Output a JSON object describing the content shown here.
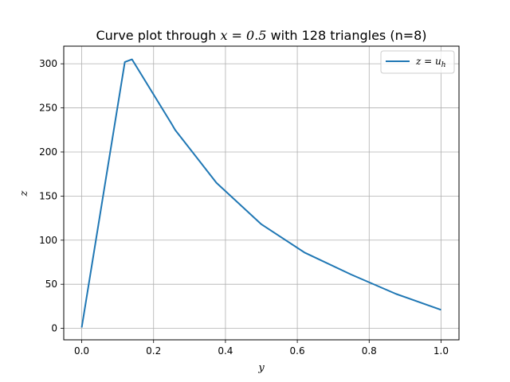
{
  "chart_data": {
    "type": "line",
    "title": {
      "prefix": "Curve plot through ",
      "math": "x = 0.5",
      "suffix": " with 128 triangles (n=8)"
    },
    "xlabel": "y",
    "ylabel": "z",
    "xlim": [
      -0.05,
      1.05
    ],
    "ylim": [
      -13,
      320
    ],
    "xticks": [
      0.0,
      0.2,
      0.4,
      0.6,
      0.8,
      1.0
    ],
    "xtick_labels": [
      "0.0",
      "0.2",
      "0.4",
      "0.6",
      "0.8",
      "1.0"
    ],
    "yticks": [
      0,
      50,
      100,
      150,
      200,
      250,
      300
    ],
    "ytick_labels": [
      "0",
      "50",
      "100",
      "150",
      "200",
      "250",
      "300"
    ],
    "grid": true,
    "legend_position": "top-right",
    "series": [
      {
        "name": "z = u_h",
        "legend_label": "z = u",
        "legend_sub": "h",
        "color": "#1f77b4",
        "x": [
          0.0,
          0.12,
          0.14,
          0.25,
          0.26,
          0.375,
          0.5,
          0.62,
          0.75,
          0.875,
          1.0
        ],
        "y": [
          1,
          302,
          305,
          232,
          225,
          165,
          118,
          86,
          61,
          39,
          21
        ]
      }
    ]
  }
}
